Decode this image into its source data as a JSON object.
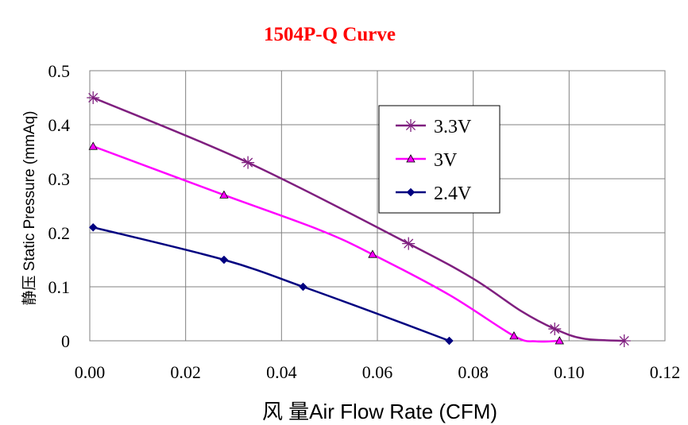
{
  "chart_data": {
    "type": "line",
    "title": "1504P-Q Curve",
    "title_color": "#ff0000",
    "xlabel": "风 量Air Flow Rate (CFM)",
    "ylabel": "静压 Static Pressure (mmAq)",
    "xlim": [
      0,
      0.12
    ],
    "ylim": [
      0,
      0.5
    ],
    "x_ticks": [
      "0.00",
      "0.02",
      "0.04",
      "0.06",
      "0.08",
      "0.10",
      "0.12"
    ],
    "y_ticks": [
      "0",
      "0.1",
      "0.2",
      "0.3",
      "0.4",
      "0.5"
    ],
    "grid": true,
    "legend_position": "top-right",
    "series": [
      {
        "name": "3.3V",
        "color": "#7f1f7f",
        "marker": "asterisk",
        "points": [
          [
            0.0007,
            0.45
          ],
          [
            0.033,
            0.33
          ],
          [
            0.0665,
            0.18
          ],
          [
            0.097,
            0.022
          ],
          [
            0.1115,
            0.0
          ]
        ],
        "curve": [
          [
            0.0007,
            0.45
          ],
          [
            0.033,
            0.33
          ],
          [
            0.0665,
            0.18
          ],
          [
            0.08,
            0.115
          ],
          [
            0.09,
            0.055
          ],
          [
            0.097,
            0.022
          ],
          [
            0.103,
            0.004
          ],
          [
            0.1115,
            0.0
          ]
        ]
      },
      {
        "name": "3V",
        "color": "#ff00ff",
        "marker": "triangle",
        "points": [
          [
            0.0007,
            0.36
          ],
          [
            0.028,
            0.27
          ],
          [
            0.059,
            0.16
          ],
          [
            0.0885,
            0.009
          ],
          [
            0.098,
            0.0
          ]
        ],
        "curve": [
          [
            0.0007,
            0.36
          ],
          [
            0.028,
            0.27
          ],
          [
            0.048,
            0.205
          ],
          [
            0.059,
            0.16
          ],
          [
            0.075,
            0.085
          ],
          [
            0.0885,
            0.009
          ],
          [
            0.093,
            -0.001
          ],
          [
            0.098,
            0.0
          ]
        ]
      },
      {
        "name": "2.4V",
        "color": "#000080",
        "marker": "diamond",
        "points": [
          [
            0.0007,
            0.21
          ],
          [
            0.028,
            0.15
          ],
          [
            0.0445,
            0.1
          ],
          [
            0.075,
            0.0
          ]
        ],
        "curve": [
          [
            0.0007,
            0.21
          ],
          [
            0.028,
            0.15
          ],
          [
            0.0445,
            0.1
          ],
          [
            0.06,
            0.05
          ],
          [
            0.075,
            0.0
          ]
        ]
      }
    ]
  }
}
